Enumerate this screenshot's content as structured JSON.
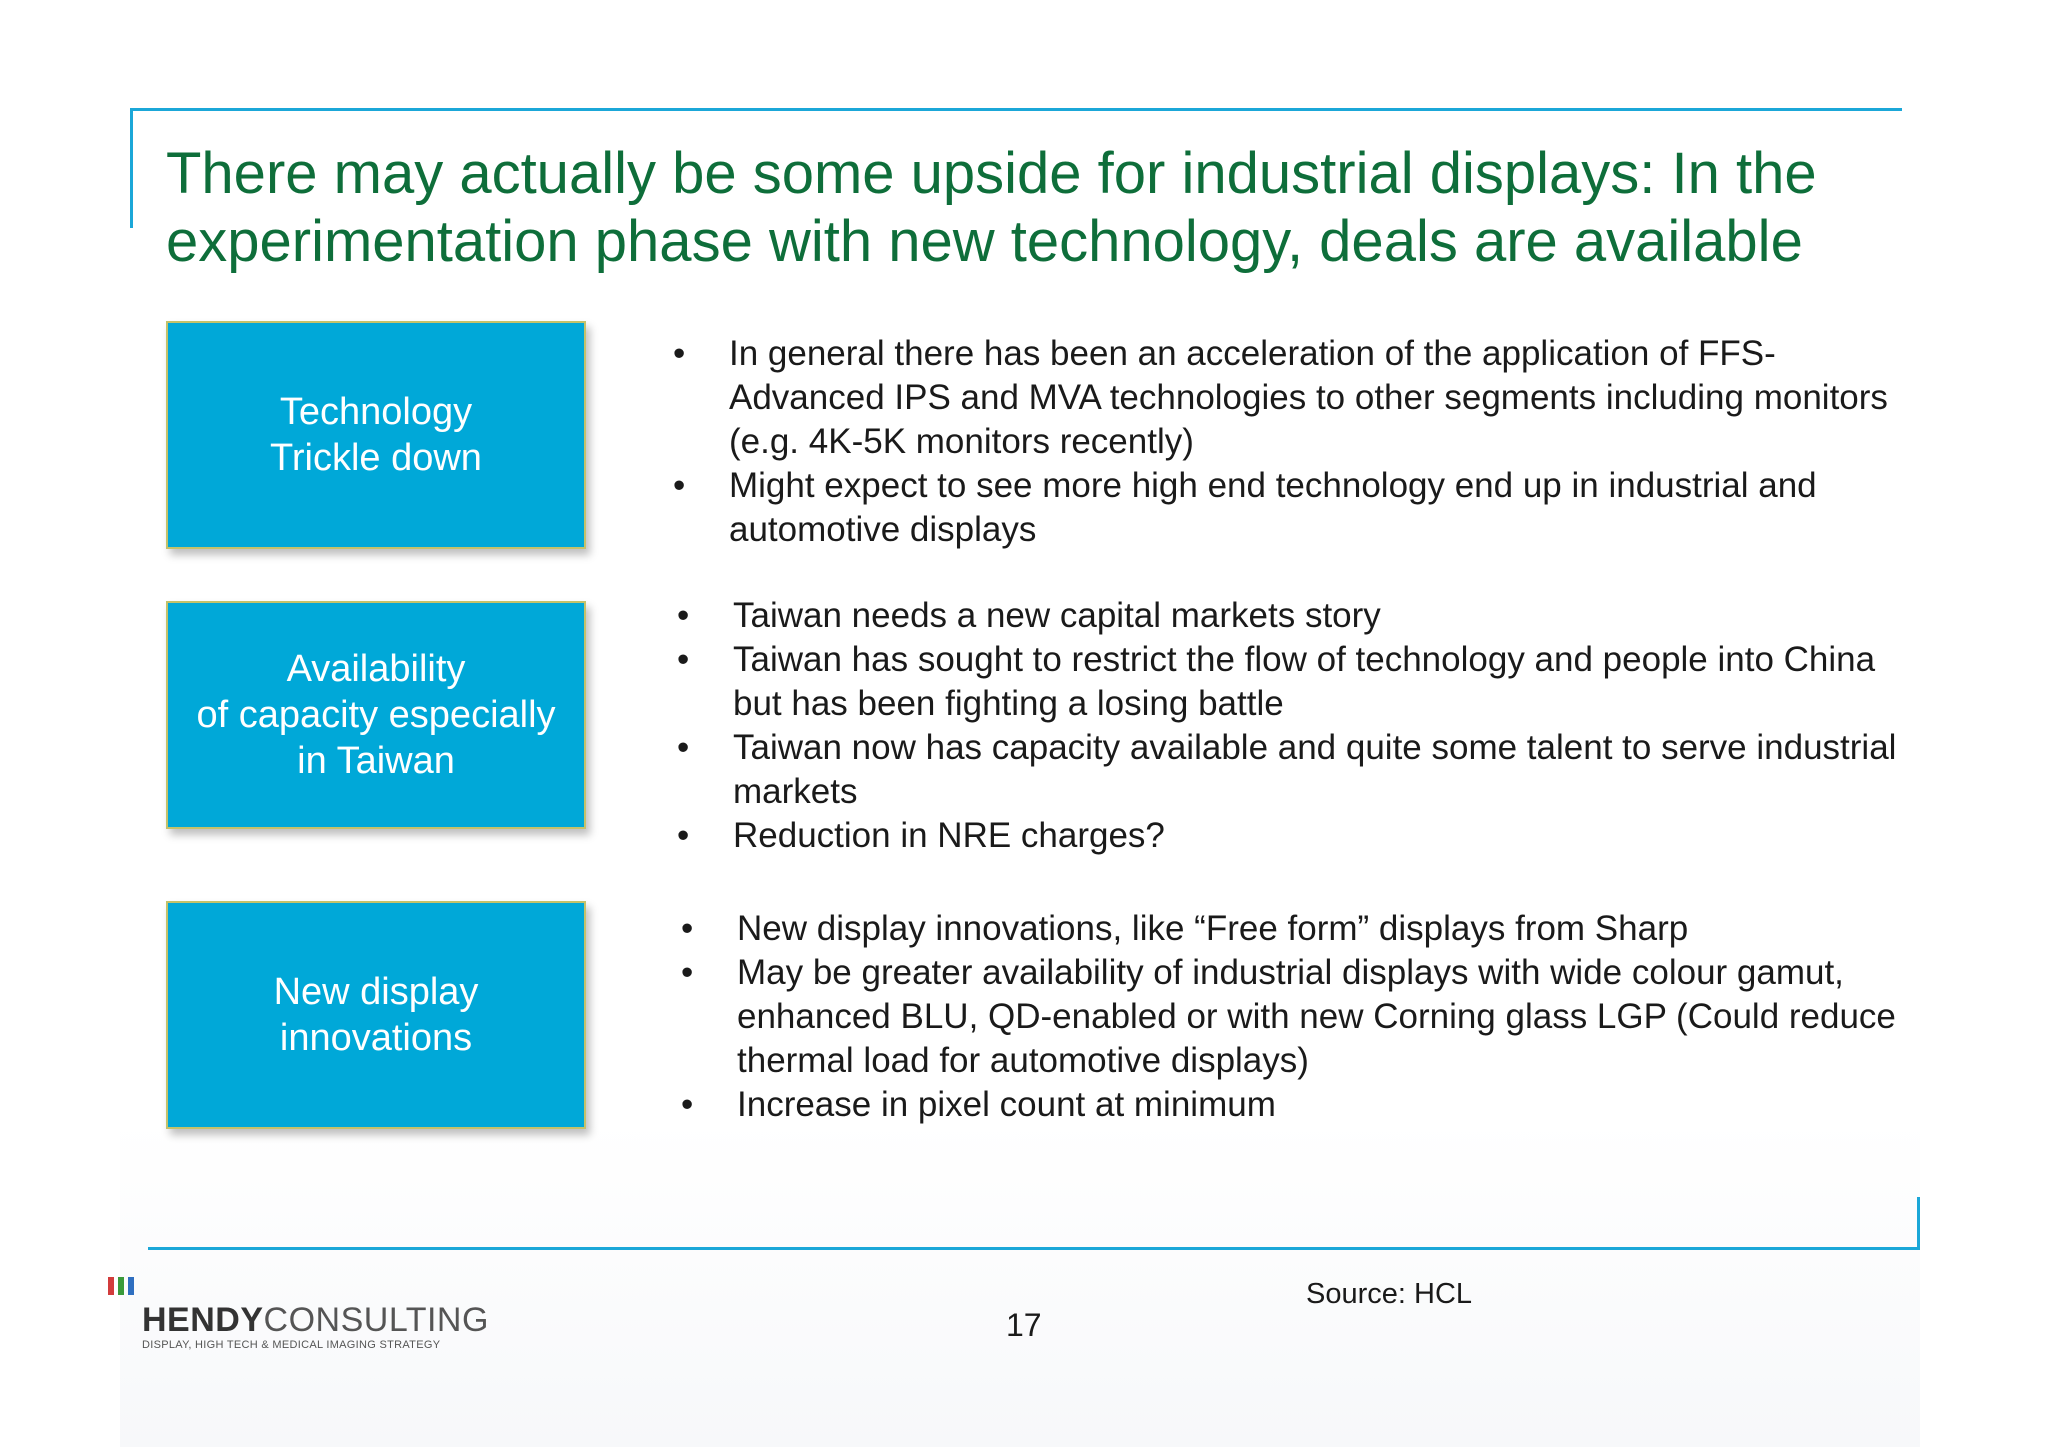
{
  "title": "There may actually be some upside for industrial displays: In the experimentation phase with new technology, deals are available",
  "sections": [
    {
      "box_label": "Technology\nTrickle down",
      "bullets": [
        "In general there has been an acceleration of the application of FFS-Advanced IPS and MVA technologies to other segments including monitors (e.g. 4K-5K monitors recently)",
        "Might expect to see more high end technology end up in industrial and automotive displays"
      ]
    },
    {
      "box_label": "Availability\nof capacity especially\nin Taiwan",
      "bullets": [
        "Taiwan needs a new capital markets story",
        "Taiwan has sought to restrict the flow of technology and people into China but has been fighting a losing battle",
        "Taiwan now has capacity available and quite some talent to serve industrial markets",
        "Reduction in NRE charges?"
      ]
    },
    {
      "box_label": "New display\ninnovations",
      "bullets": [
        "New display innovations, like “Free form” displays from Sharp",
        "May be greater availability of industrial displays with wide colour gamut, enhanced BLU, QD-enabled or with new Corning glass LGP (Could reduce thermal load for automotive displays)",
        "Increase in pixel count at minimum"
      ]
    }
  ],
  "bullet_char": "•",
  "source": "Source: HCL",
  "page_number": "17",
  "logo": {
    "name_bold": "HENDY",
    "name_light": "CONSULTING",
    "tagline": "DISPLAY, HIGH TECH & MEDICAL IMAGING STRATEGY",
    "bar_colors": [
      "#d23c3c",
      "#3a9a3a",
      "#2f6fc0"
    ]
  },
  "colors": {
    "title": "#0e6e3a",
    "box_fill": "#00a8d8",
    "frame": "#1ba7d8"
  }
}
